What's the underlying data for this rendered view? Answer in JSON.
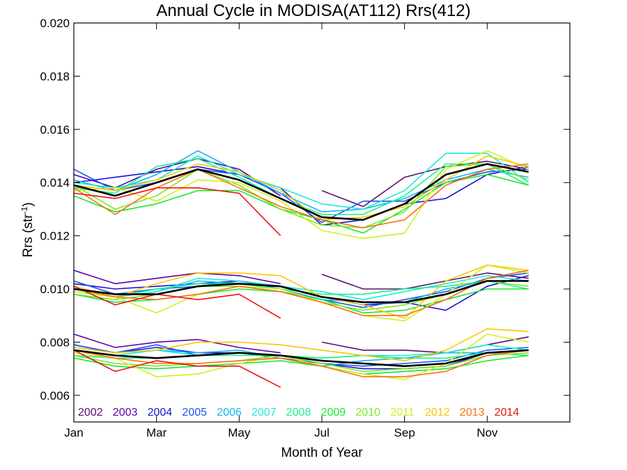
{
  "chart_data": {
    "type": "line",
    "title": "Annual Cycle in MODISA(AT112) Rrs(412)",
    "xlabel": "Month of Year",
    "ylabel_main": "Rrs (str",
    "ylabel_sup": "-1",
    "ylabel_end": ")",
    "xlim": [
      1,
      13
    ],
    "ylim": [
      0.005,
      0.02
    ],
    "x_ticks": [
      {
        "x": 1,
        "label": "Jan"
      },
      {
        "x": 3,
        "label": "Mar"
      },
      {
        "x": 5,
        "label": "May"
      },
      {
        "x": 7,
        "label": "Jul"
      },
      {
        "x": 9,
        "label": "Sep"
      },
      {
        "x": 11,
        "label": "Nov"
      }
    ],
    "y_ticks": [
      {
        "y": 0.006,
        "label": "0.006"
      },
      {
        "y": 0.008,
        "label": "0.008"
      },
      {
        "y": 0.01,
        "label": "0.010"
      },
      {
        "y": 0.012,
        "label": "0.012"
      },
      {
        "y": 0.014,
        "label": "0.014"
      },
      {
        "y": 0.016,
        "label": "0.016"
      },
      {
        "y": 0.018,
        "label": "0.018"
      },
      {
        "y": 0.02,
        "label": "0.020"
      }
    ],
    "x": [
      1.0,
      2.0,
      3.0,
      4.0,
      5.0,
      6.0,
      7.0,
      8.0,
      9.0,
      10.0,
      11.0,
      12.0
    ],
    "series": [
      {
        "name": "2002",
        "color": "#5a1070",
        "values": [
          [
            null,
            null,
            null,
            null,
            null,
            null,
            0.0137,
            0.0131,
            0.0142,
            0.0146,
            0.0148,
            0.0145
          ],
          [
            null,
            null,
            null,
            null,
            null,
            null,
            0.01055,
            0.01,
            0.01,
            0.0103,
            0.0106,
            0.0104
          ],
          [
            null,
            null,
            null,
            null,
            null,
            null,
            0.008,
            0.0077,
            0.0077,
            0.0076,
            0.0079,
            0.0082
          ]
        ]
      },
      {
        "name": "2003",
        "color": "#5e00a8",
        "values": [
          [
            0.0143,
            0.0138,
            0.0145,
            0.0149,
            0.0145,
            0.0135,
            null,
            null,
            null,
            null,
            null,
            null
          ],
          [
            0.0107,
            0.0102,
            0.0104,
            0.0106,
            0.0105,
            0.0102,
            null,
            null,
            null,
            null,
            null,
            null
          ],
          [
            0.0083,
            0.0078,
            0.008,
            0.0081,
            0.0078,
            0.0076,
            null,
            null,
            null,
            null,
            null,
            null
          ]
        ]
      },
      {
        "name": "2004",
        "color": "#1a10d8",
        "values": [
          [
            0.014,
            0.0142,
            0.0144,
            0.0146,
            0.0143,
            0.0138,
            0.0124,
            0.0126,
            0.0132,
            0.0134,
            0.0143,
            0.0146
          ],
          [
            0.0102,
            0.01,
            0.0101,
            0.0102,
            0.0103,
            0.0101,
            0.0097,
            0.0094,
            0.0095,
            0.0092,
            0.0101,
            0.0105
          ],
          [
            0.0079,
            0.0076,
            0.0078,
            0.0076,
            0.0076,
            0.0075,
            0.0072,
            0.007,
            0.007,
            0.0071,
            0.0076,
            0.0077
          ]
        ]
      },
      {
        "name": "2005",
        "color": "#1a55ee",
        "values": [
          [
            0.0145,
            0.0137,
            0.014,
            0.0145,
            0.0143,
            0.0136,
            0.0125,
            0.0133,
            0.0133,
            0.014,
            0.0144,
            0.0145
          ],
          [
            0.0103,
            0.0098,
            0.01,
            0.0101,
            0.0103,
            0.01,
            0.0096,
            0.0093,
            0.0096,
            0.0099,
            0.0104,
            0.0106
          ],
          [
            0.0079,
            0.0076,
            0.0079,
            0.0075,
            0.0076,
            0.0074,
            0.0072,
            0.0071,
            0.0072,
            0.0073,
            0.0077,
            0.0078
          ]
        ]
      },
      {
        "name": "2006",
        "color": "#10b4ee",
        "values": [
          [
            0.0141,
            0.0137,
            0.0143,
            0.0152,
            0.0144,
            0.0136,
            0.0129,
            0.013,
            0.0134,
            0.0141,
            0.0145,
            0.0142
          ],
          [
            0.0101,
            0.0097,
            0.0099,
            0.0103,
            0.0102,
            0.01,
            0.0096,
            0.0095,
            0.0095,
            0.01,
            0.0103,
            0.0103
          ],
          [
            0.0078,
            0.0076,
            0.0077,
            0.0076,
            0.0077,
            0.0074,
            0.0071,
            0.0073,
            0.0074,
            0.0076,
            0.0076,
            0.0077
          ]
        ]
      },
      {
        "name": "2007",
        "color": "#20e8d8",
        "values": [
          [
            0.014,
            0.0138,
            0.0141,
            0.015,
            0.0143,
            0.0138,
            0.0132,
            0.013,
            0.0137,
            0.0151,
            0.0151,
            0.014
          ],
          [
            0.01,
            0.0097,
            0.0099,
            0.0104,
            0.0103,
            0.0101,
            0.0099,
            0.0096,
            0.0099,
            0.0102,
            0.0105,
            0.0103
          ],
          [
            0.0077,
            0.0075,
            0.0077,
            0.0075,
            0.0076,
            0.0075,
            0.0074,
            0.0075,
            0.0075,
            0.0076,
            0.0079,
            0.0077
          ]
        ]
      },
      {
        "name": "2008",
        "color": "#18f090",
        "values": [
          [
            0.0138,
            0.0136,
            0.0146,
            0.0149,
            0.0142,
            0.0134,
            0.0128,
            0.0128,
            0.0135,
            0.0147,
            0.0147,
            0.0139
          ],
          [
            0.0099,
            0.0097,
            0.01,
            0.0102,
            0.0102,
            0.01,
            0.0098,
            0.0098,
            0.01,
            0.0101,
            0.0103,
            0.01
          ],
          [
            0.0075,
            0.0074,
            0.0074,
            0.0075,
            0.0075,
            0.0075,
            0.0074,
            0.0075,
            0.0074,
            0.0074,
            0.0076,
            0.0075
          ]
        ]
      },
      {
        "name": "2009",
        "color": "#18e830",
        "values": [
          [
            0.0135,
            0.0129,
            0.0132,
            0.0137,
            0.0137,
            0.013,
            0.0126,
            0.0121,
            0.013,
            0.014,
            0.0143,
            0.0139
          ],
          [
            0.0098,
            0.0095,
            0.0096,
            0.0098,
            0.01,
            0.0099,
            0.0096,
            0.0091,
            0.0092,
            0.0096,
            0.01,
            0.01
          ],
          [
            0.0074,
            0.0071,
            0.007,
            0.0071,
            0.0072,
            0.0073,
            0.0071,
            0.0068,
            0.0069,
            0.007,
            0.0073,
            0.0075
          ]
        ]
      },
      {
        "name": "2010",
        "color": "#7ce820",
        "values": [
          [
            0.0139,
            0.013,
            0.0135,
            0.0145,
            0.0139,
            0.013,
            0.0124,
            0.0123,
            0.0129,
            0.0146,
            0.0147,
            0.0141
          ],
          [
            0.0098,
            0.0096,
            0.0098,
            0.0101,
            0.0101,
            0.01,
            0.0095,
            0.0092,
            0.0094,
            0.0098,
            0.0103,
            0.0101
          ],
          [
            0.0075,
            0.0072,
            0.0071,
            0.0072,
            0.0073,
            0.0075,
            0.0072,
            0.0069,
            0.007,
            0.0071,
            0.0075,
            0.0076
          ]
        ]
      },
      {
        "name": "2011",
        "color": "#d0f020",
        "values": [
          [
            0.0137,
            0.0138,
            0.0133,
            0.0141,
            0.014,
            0.0133,
            0.0122,
            0.0119,
            0.0121,
            0.0145,
            0.0152,
            0.0145
          ],
          [
            0.0099,
            0.0097,
            0.0091,
            0.0098,
            0.0101,
            0.01,
            0.0095,
            0.009,
            0.0088,
            0.0098,
            0.0109,
            0.0106
          ],
          [
            0.0076,
            0.0074,
            0.0067,
            0.0068,
            0.0072,
            0.0075,
            0.0071,
            0.0068,
            0.0066,
            0.0072,
            0.0083,
            0.008
          ]
        ]
      },
      {
        "name": "2012",
        "color": "#f8c800",
        "values": [
          [
            0.0139,
            0.0137,
            0.0141,
            0.0147,
            0.0144,
            0.0137,
            0.0126,
            0.0127,
            0.0131,
            0.0141,
            0.015,
            0.0146
          ],
          [
            0.0101,
            0.0097,
            0.0102,
            0.0106,
            0.0106,
            0.0105,
            0.0097,
            0.0094,
            0.0089,
            0.0103,
            0.0109,
            0.0107
          ],
          [
            0.0078,
            0.0076,
            0.0077,
            0.008,
            0.008,
            0.0079,
            0.0077,
            0.0075,
            0.0073,
            0.0077,
            0.0085,
            0.0084
          ]
        ]
      },
      {
        "name": "2013",
        "color": "#f87010",
        "values": [
          [
            0.0138,
            0.0128,
            0.0138,
            0.0145,
            0.0138,
            0.0131,
            0.0126,
            0.0123,
            0.0126,
            0.0139,
            0.0145,
            0.0147
          ],
          [
            0.01,
            0.0097,
            0.0096,
            0.0098,
            0.0101,
            0.0099,
            0.0095,
            0.009,
            0.009,
            0.0096,
            0.0104,
            0.0107
          ],
          [
            0.0077,
            0.0074,
            0.0072,
            0.0072,
            0.0073,
            0.0074,
            0.0071,
            0.0067,
            0.0067,
            0.0069,
            0.0075,
            0.0077
          ]
        ]
      },
      {
        "name": "2014",
        "color": "#ee1010",
        "values": [
          [
            0.0136,
            0.0134,
            0.0138,
            0.0138,
            0.0136,
            0.012,
            null,
            null,
            null,
            null,
            null,
            null
          ],
          [
            0.0101,
            0.0094,
            0.0098,
            0.0096,
            0.0098,
            0.0089,
            null,
            null,
            null,
            null,
            null,
            null
          ],
          [
            0.0077,
            0.0069,
            0.0073,
            0.0071,
            0.0071,
            0.0063,
            null,
            null,
            null,
            null,
            null,
            null
          ]
        ]
      },
      {
        "name": "",
        "color": "#000000",
        "bold": true,
        "values": [
          [
            0.0139,
            0.0135,
            0.014,
            0.0145,
            0.0141,
            0.0134,
            0.0127,
            0.0126,
            0.0132,
            0.0143,
            0.0147,
            0.0144
          ],
          [
            0.01,
            0.0098,
            0.0098,
            0.0101,
            0.0102,
            0.0101,
            0.0097,
            0.0095,
            0.0095,
            0.0098,
            0.0103,
            0.0103
          ],
          [
            0.0077,
            0.0075,
            0.0074,
            0.0075,
            0.0076,
            0.0075,
            0.0073,
            0.0072,
            0.0071,
            0.0072,
            0.0076,
            0.0077
          ]
        ]
      }
    ]
  }
}
